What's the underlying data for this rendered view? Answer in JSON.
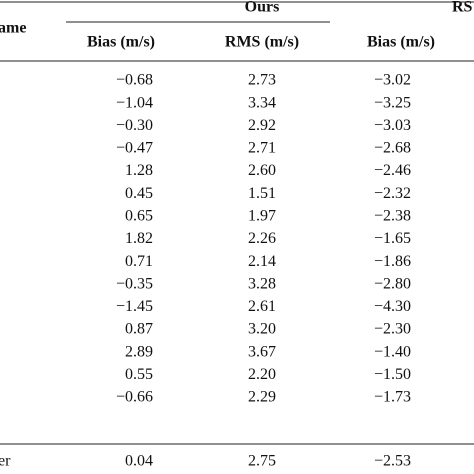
{
  "header": {
    "name_col": "ame",
    "groups": [
      "Ours",
      "RS"
    ],
    "subheaders": [
      "Bias (m/s)",
      "RMS (m/s)",
      "Bias (m/s)"
    ]
  },
  "table": {
    "rows": [
      [
        "−0.68",
        "2.73",
        "−3.02"
      ],
      [
        "−1.04",
        "3.34",
        "−3.25"
      ],
      [
        "−0.30",
        "2.92",
        "−3.03"
      ],
      [
        "−0.47",
        "2.71",
        "−2.68"
      ],
      [
        "1.28",
        "2.60",
        "−2.46"
      ],
      [
        "0.45",
        "1.51",
        "−2.32"
      ],
      [
        "0.65",
        "1.97",
        "−2.38"
      ],
      [
        "1.82",
        "2.26",
        "−1.65"
      ],
      [
        "0.71",
        "2.14",
        "−1.86"
      ],
      [
        "−0.35",
        "3.28",
        "−2.80"
      ],
      [
        "−1.45",
        "2.61",
        "−4.30"
      ],
      [
        "0.87",
        "3.20",
        "−2.30"
      ],
      [
        "2.89",
        "3.67",
        "−1.40"
      ],
      [
        "0.55",
        "2.20",
        "−1.50"
      ],
      [
        "−0.66",
        "2.29",
        "−1.73"
      ]
    ]
  },
  "footer": {
    "label": "er",
    "values": [
      "0.04",
      "2.75",
      "−2.53"
    ]
  }
}
